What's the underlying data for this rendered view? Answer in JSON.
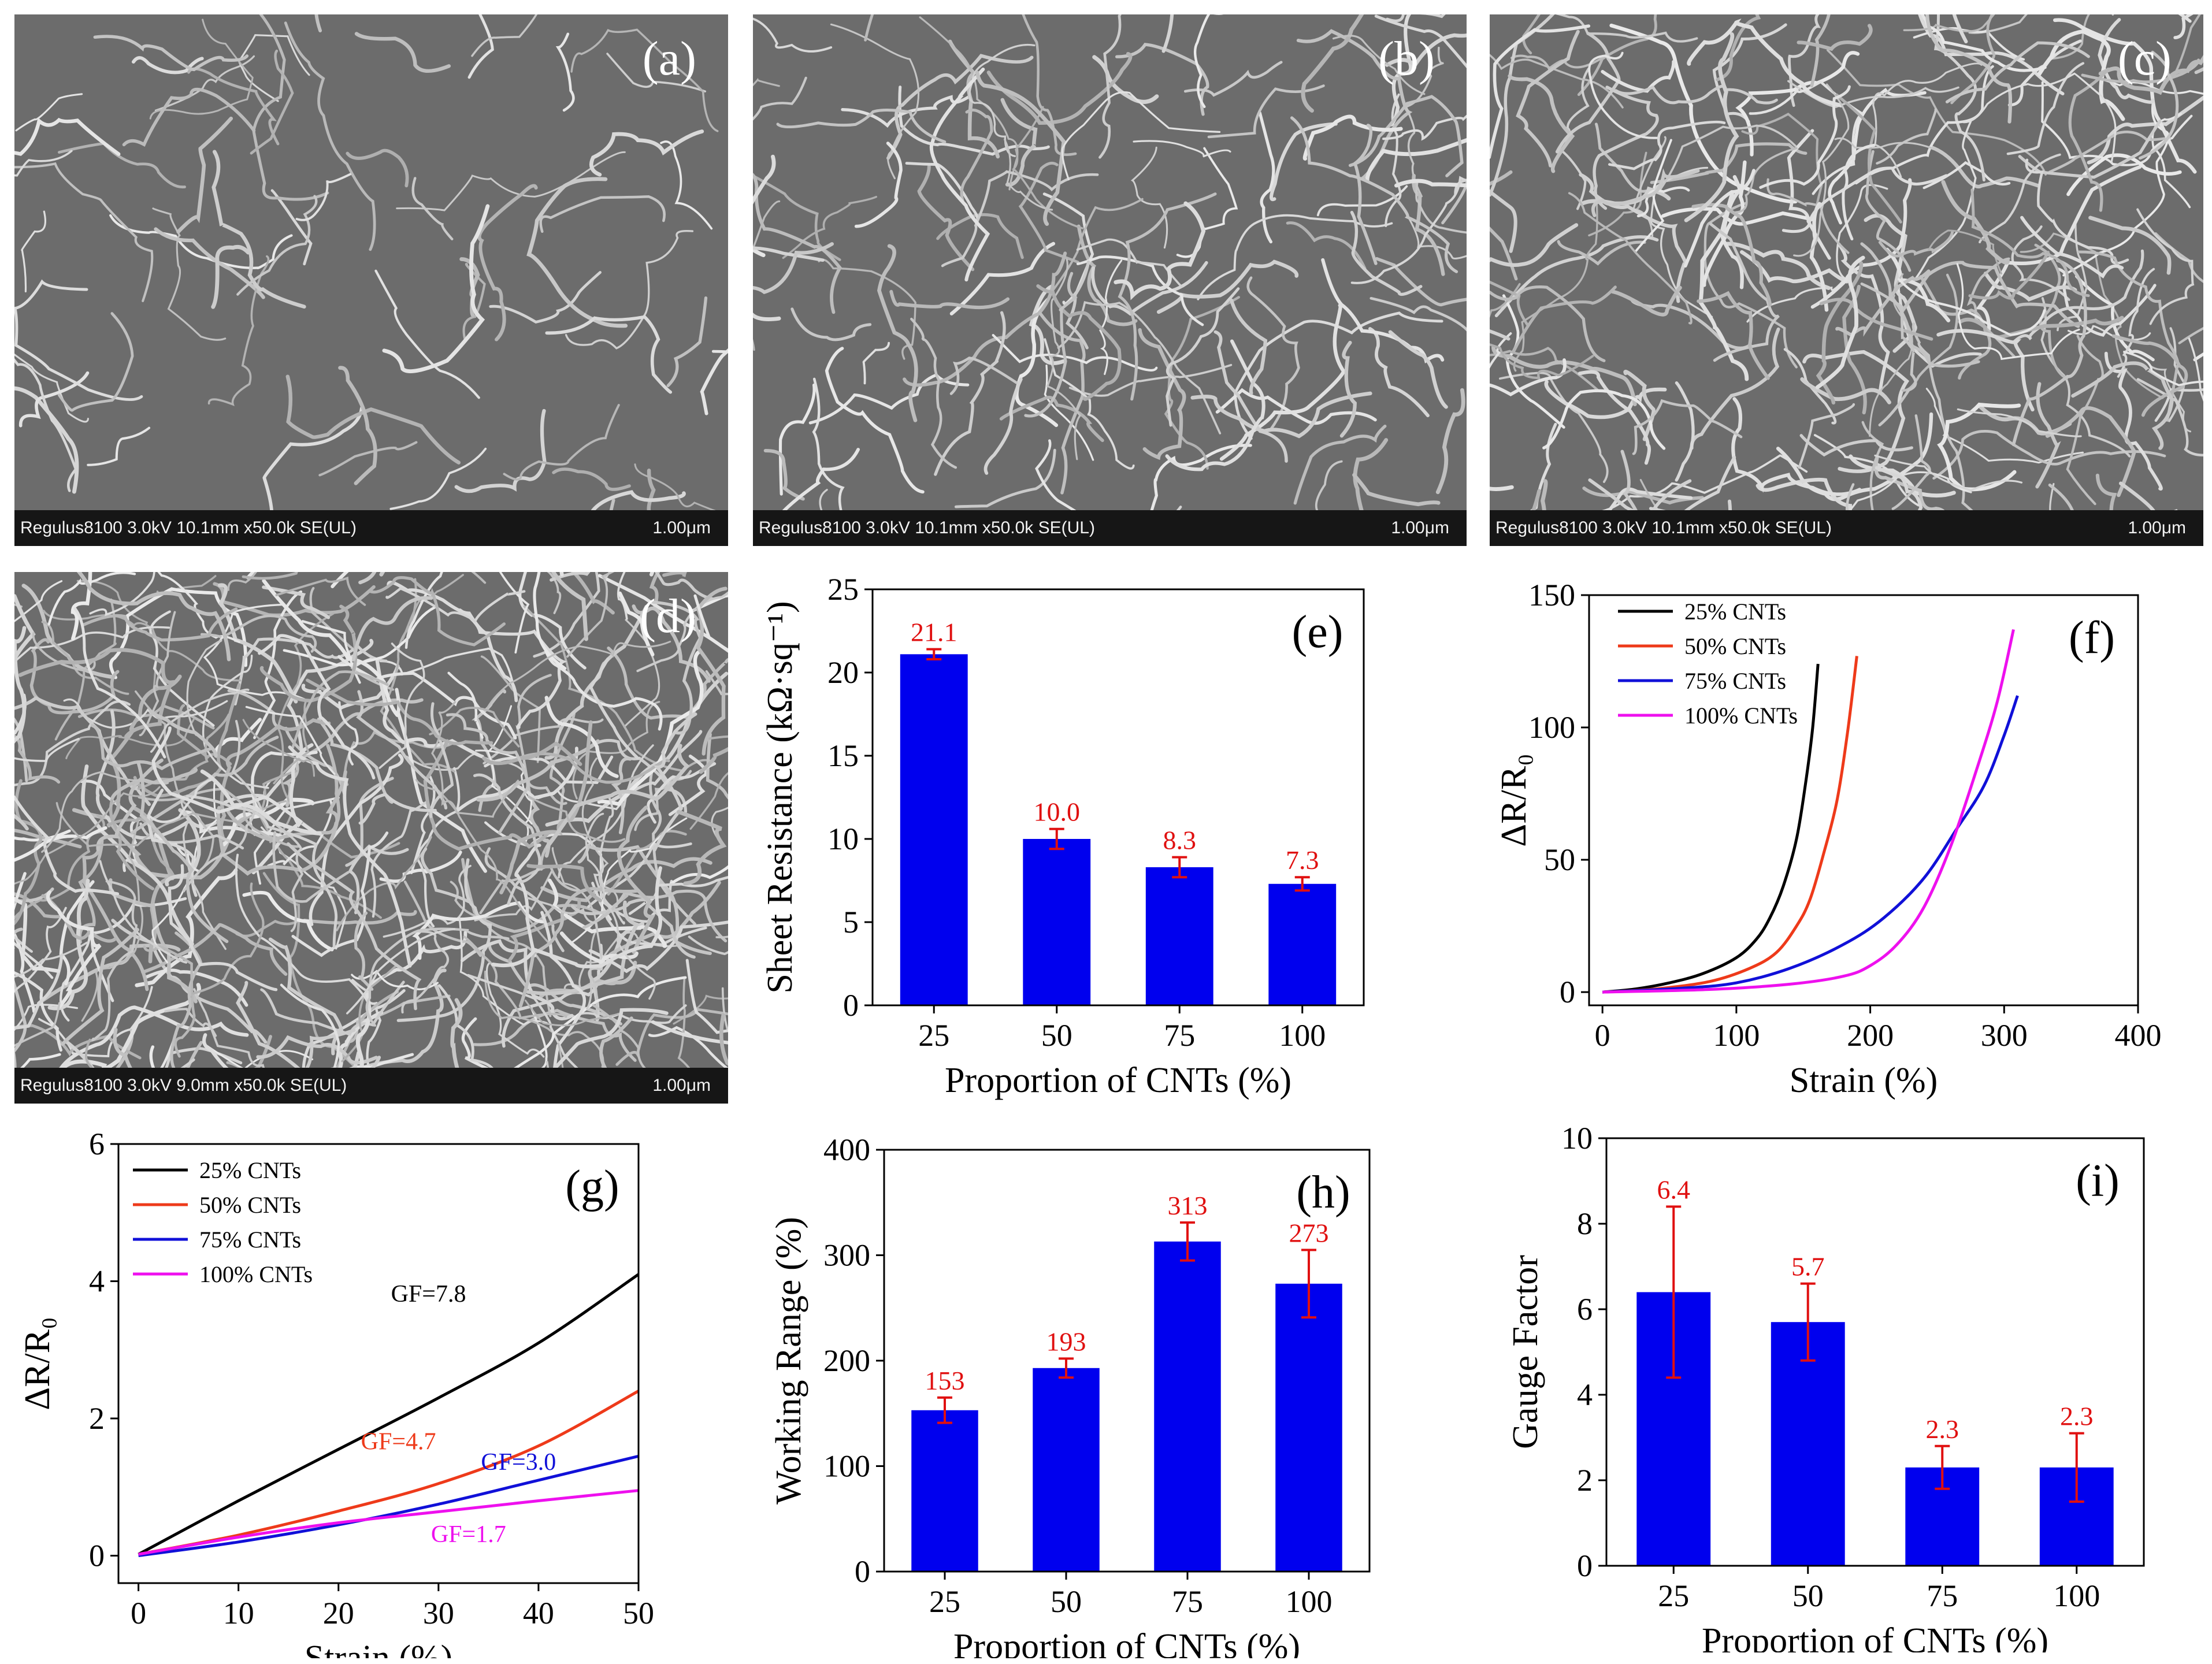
{
  "colors": {
    "bar": "#0000ee",
    "error_bar": "#e01010",
    "data_label": "#e01010",
    "series_25": "#000000",
    "series_50": "#ee3a1a",
    "series_75": "#1010d8",
    "series_100": "#ee10ee"
  },
  "sem_panels": [
    {
      "label": "(a)",
      "meta": "Regulus8100 3.0kV 10.1mm x50.0k SE(UL)",
      "scale": "1.00μm",
      "density": 70
    },
    {
      "label": "(b)",
      "meta": "Regulus8100 3.0kV 10.1mm x50.0k SE(UL)",
      "scale": "1.00μm",
      "density": 140
    },
    {
      "label": "(c)",
      "meta": "Regulus8100 3.0kV 10.1mm x50.0k SE(UL)",
      "scale": "1.00μm",
      "density": 230
    },
    {
      "label": "(d)",
      "meta": "Regulus8100 3.0kV 9.0mm x50.0k SE(UL)",
      "scale": "1.00μm",
      "density": 380
    }
  ],
  "chart_data": [
    {
      "id": "e",
      "type": "bar",
      "panel_label": "(e)",
      "categories": [
        "25",
        "50",
        "75",
        "100"
      ],
      "values": [
        21.1,
        10.0,
        8.3,
        7.3
      ],
      "errors": [
        0.3,
        0.6,
        0.6,
        0.4
      ],
      "value_labels": [
        "21.1",
        "10.0",
        "8.3",
        "7.3"
      ],
      "xlabel": "Proportion of CNTs (%)",
      "ylabel": "Sheet Resistance (kΩ·sq⁻¹)",
      "ylim": [
        0,
        25
      ],
      "yticks": [
        0,
        5,
        10,
        15,
        20,
        25
      ]
    },
    {
      "id": "f",
      "type": "line",
      "panel_label": "(f)",
      "xlabel": "Strain (%)",
      "ylabel": "ΔR/R₀",
      "xlim": [
        -10,
        400
      ],
      "ylim": [
        -5,
        150
      ],
      "xticks": [
        0,
        100,
        200,
        300,
        400
      ],
      "yticks": [
        0,
        50,
        100,
        150
      ],
      "legend": "top-left",
      "series": [
        {
          "name": "25% CNTs",
          "points": [
            [
              0,
              0
            ],
            [
              25,
              1.2
            ],
            [
              50,
              3.5
            ],
            [
              75,
              7
            ],
            [
              100,
              13
            ],
            [
              115,
              20
            ],
            [
              125,
              28
            ],
            [
              135,
              40
            ],
            [
              145,
              58
            ],
            [
              152,
              80
            ],
            [
              157,
              100
            ],
            [
              161,
              124
            ]
          ]
        },
        {
          "name": "50% CNTs",
          "points": [
            [
              0,
              0
            ],
            [
              40,
              1.2
            ],
            [
              80,
              4
            ],
            [
              110,
              9
            ],
            [
              130,
              15
            ],
            [
              145,
              25
            ],
            [
              155,
              35
            ],
            [
              165,
              52
            ],
            [
              175,
              72
            ],
            [
              183,
              98
            ],
            [
              190,
              127
            ]
          ]
        },
        {
          "name": "75% CNTs",
          "points": [
            [
              0,
              0
            ],
            [
              60,
              1.5
            ],
            [
              100,
              3.5
            ],
            [
              140,
              9
            ],
            [
              180,
              18
            ],
            [
              210,
              28
            ],
            [
              240,
              43
            ],
            [
              265,
              62
            ],
            [
              285,
              78
            ],
            [
              300,
              97
            ],
            [
              310,
              112
            ]
          ]
        },
        {
          "name": "100% CNTs",
          "points": [
            [
              0,
              0
            ],
            [
              80,
              1
            ],
            [
              140,
              3
            ],
            [
              180,
              6
            ],
            [
              200,
              10
            ],
            [
              220,
              18
            ],
            [
              240,
              32
            ],
            [
              260,
              55
            ],
            [
              280,
              85
            ],
            [
              295,
              110
            ],
            [
              307,
              137
            ]
          ]
        }
      ]
    },
    {
      "id": "g",
      "type": "line",
      "panel_label": "(g)",
      "xlabel": "Strain (%)",
      "ylabel": "ΔR/R₀",
      "xlim": [
        -2,
        50
      ],
      "ylim": [
        -0.4,
        6
      ],
      "xticks": [
        0,
        10,
        20,
        30,
        40,
        50
      ],
      "yticks": [
        0,
        2,
        4,
        6
      ],
      "legend": "top-left",
      "series": [
        {
          "name": "25% CNTs",
          "points": [
            [
              0,
              0.02
            ],
            [
              10,
              0.8
            ],
            [
              20,
              1.55
            ],
            [
              30,
              2.3
            ],
            [
              40,
              3.1
            ],
            [
              50,
              4.1
            ]
          ]
        },
        {
          "name": "50% CNTs",
          "points": [
            [
              0,
              0.02
            ],
            [
              10,
              0.3
            ],
            [
              20,
              0.65
            ],
            [
              30,
              1.05
            ],
            [
              40,
              1.6
            ],
            [
              50,
              2.4
            ]
          ]
        },
        {
          "name": "75% CNTs",
          "points": [
            [
              0,
              0.0
            ],
            [
              10,
              0.2
            ],
            [
              20,
              0.45
            ],
            [
              30,
              0.75
            ],
            [
              40,
              1.1
            ],
            [
              50,
              1.45
            ]
          ]
        },
        {
          "name": "100% CNTs",
          "points": [
            [
              0,
              0.02
            ],
            [
              10,
              0.27
            ],
            [
              20,
              0.48
            ],
            [
              30,
              0.64
            ],
            [
              40,
              0.8
            ],
            [
              50,
              0.95
            ]
          ]
        }
      ],
      "annotations": [
        {
          "text": "GF=7.8",
          "x": 29,
          "y": 3.7,
          "series": 0
        },
        {
          "text": "GF=4.7",
          "x": 26,
          "y": 1.55,
          "series": 1
        },
        {
          "text": "GF=3.0",
          "x": 38,
          "y": 1.25,
          "series": 2
        },
        {
          "text": "GF=1.7",
          "x": 33,
          "y": 0.2,
          "series": 3
        }
      ]
    },
    {
      "id": "h",
      "type": "bar",
      "panel_label": "(h)",
      "categories": [
        "25",
        "50",
        "75",
        "100"
      ],
      "values": [
        153,
        193,
        313,
        273
      ],
      "errors": [
        12,
        9,
        18,
        32
      ],
      "value_labels": [
        "153",
        "193",
        "313",
        "273"
      ],
      "xlabel": "Proportion of CNTs (%)",
      "ylabel": "Working Range (%)",
      "ylim": [
        0,
        400
      ],
      "yticks": [
        0,
        100,
        200,
        300,
        400
      ]
    },
    {
      "id": "i",
      "type": "bar",
      "panel_label": "(i)",
      "categories": [
        "25",
        "50",
        "75",
        "100"
      ],
      "values": [
        6.4,
        5.7,
        2.3,
        2.3
      ],
      "errors": [
        2.0,
        0.9,
        0.5,
        0.8
      ],
      "value_labels": [
        "6.4",
        "5.7",
        "2.3",
        "2.3"
      ],
      "xlabel": "Proportion of CNTs (%)",
      "ylabel": "Gauge Factor",
      "ylim": [
        0,
        10
      ],
      "yticks": [
        0,
        2,
        4,
        6,
        8,
        10
      ]
    }
  ]
}
